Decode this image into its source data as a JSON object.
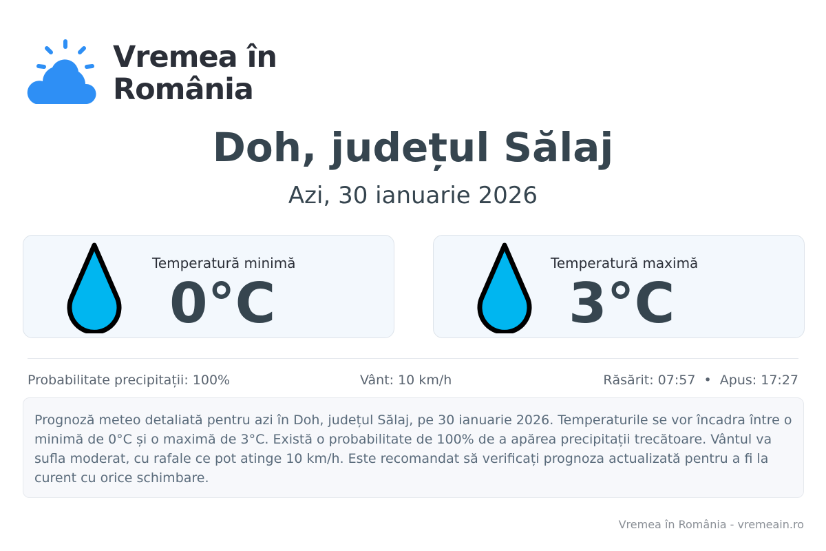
{
  "logo": {
    "line1": "Vremea în",
    "line2": "România",
    "icon": "sun-cloud-icon",
    "color": "#1e90ff"
  },
  "location_title": "Doh, județul Sălaj",
  "date": "Azi, 30 ianuarie 2026",
  "cards": [
    {
      "label": "Temperatură minimă",
      "value": "0°C",
      "icon": "water-drop-icon"
    },
    {
      "label": "Temperatură maximă",
      "value": "3°C",
      "icon": "water-drop-icon"
    }
  ],
  "info": {
    "precip": "Probabilitate precipitații: 100%",
    "wind": "Vânt: 10 km/h",
    "sun": "Răsărit: 07:57  •  Apus: 17:27"
  },
  "description": "Prognoză meteo detaliată pentru azi în Doh, județul Sălaj, pe 30 ianuarie 2026. Temperaturile se vor încadra între o minimă de 0°C și o maximă de 3°C. Există o probabilitate de 100% de a apărea precipitații trecătoare. Vântul va sufla moderat, cu rafale ce pot atinge 10 km/h. Este recomandat să verificați prognoza actualizată pentru a fi la curent cu orice schimbare.",
  "footer": "Vremea în România - vremeain.ro",
  "colors": {
    "drop": "#00b6f0",
    "text": "#36454f"
  }
}
